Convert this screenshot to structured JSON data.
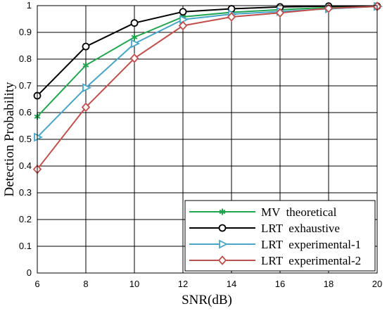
{
  "chart_data": {
    "type": "line",
    "title": "",
    "xlabel": "SNR(dB)",
    "ylabel": "Detection Probability",
    "xlim": [
      6,
      20
    ],
    "ylim": [
      0,
      1
    ],
    "xticks": [
      6,
      8,
      10,
      12,
      14,
      16,
      18,
      20
    ],
    "yticks": [
      0,
      0.1,
      0.2,
      0.3,
      0.4,
      0.5,
      0.6,
      0.7,
      0.8,
      0.9,
      1
    ],
    "ytick_labels": [
      "0",
      "0.1",
      "0.2",
      "0.3",
      "0.4",
      "0.5",
      "0.6",
      "0.7",
      "0.8",
      "0.9",
      "1"
    ],
    "grid": true,
    "legend_position": "bottom-right",
    "x": [
      6,
      8,
      10,
      12,
      14,
      16,
      18,
      20
    ],
    "series": [
      {
        "name": "MV  theoretical",
        "marker": "asterisk",
        "color": "#22a550",
        "values": [
          0.585,
          0.777,
          0.882,
          0.958,
          0.975,
          0.985,
          0.993,
          0.998
        ]
      },
      {
        "name": "LRT  exhaustive",
        "marker": "circle",
        "color": "#000000",
        "values": [
          0.663,
          0.847,
          0.935,
          0.977,
          0.988,
          0.995,
          0.998,
          0.998
        ]
      },
      {
        "name": "LRT  experimental-1",
        "marker": "triangle-right",
        "color": "#4aa6c8",
        "values": [
          0.508,
          0.693,
          0.858,
          0.948,
          0.968,
          0.978,
          0.988,
          0.997
        ]
      },
      {
        "name": "LRT  experimental-2",
        "marker": "diamond",
        "color": "#c0504d",
        "values": [
          0.388,
          0.62,
          0.803,
          0.925,
          0.958,
          0.973,
          0.99,
          0.997
        ]
      }
    ]
  }
}
